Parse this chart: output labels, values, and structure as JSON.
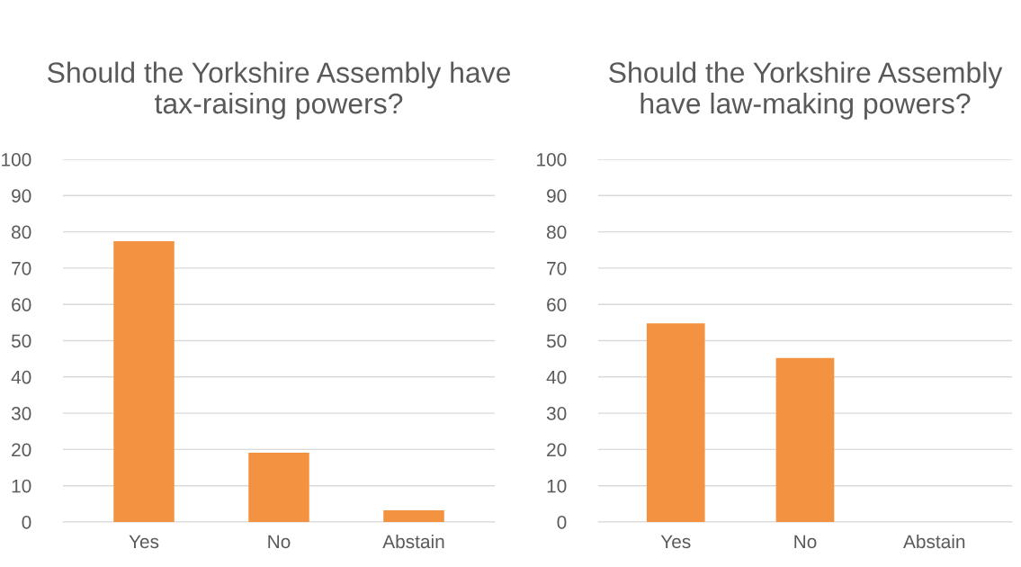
{
  "chart_data": [
    {
      "type": "bar",
      "title": "Should the Yorkshire Assembly have tax-raising powers?",
      "categories": [
        "Yes",
        "No",
        "Abstain"
      ],
      "values": [
        77.4,
        19.1,
        3.2
      ],
      "color": "#f39240",
      "ylim": [
        0,
        100
      ],
      "yticks": [
        0,
        10,
        20,
        30,
        40,
        50,
        60,
        70,
        80,
        90,
        100
      ],
      "grid": "y",
      "legend": false
    },
    {
      "type": "bar",
      "title": "Should the Yorkshire Assembly have law-making powers?",
      "categories": [
        "Yes",
        "No",
        "Abstain"
      ],
      "values": [
        54.8,
        45.2,
        0
      ],
      "color": "#f39240",
      "ylim": [
        0,
        100
      ],
      "yticks": [
        0,
        10,
        20,
        30,
        40,
        50,
        60,
        70,
        80,
        90,
        100
      ],
      "grid": "y",
      "legend": false
    }
  ]
}
